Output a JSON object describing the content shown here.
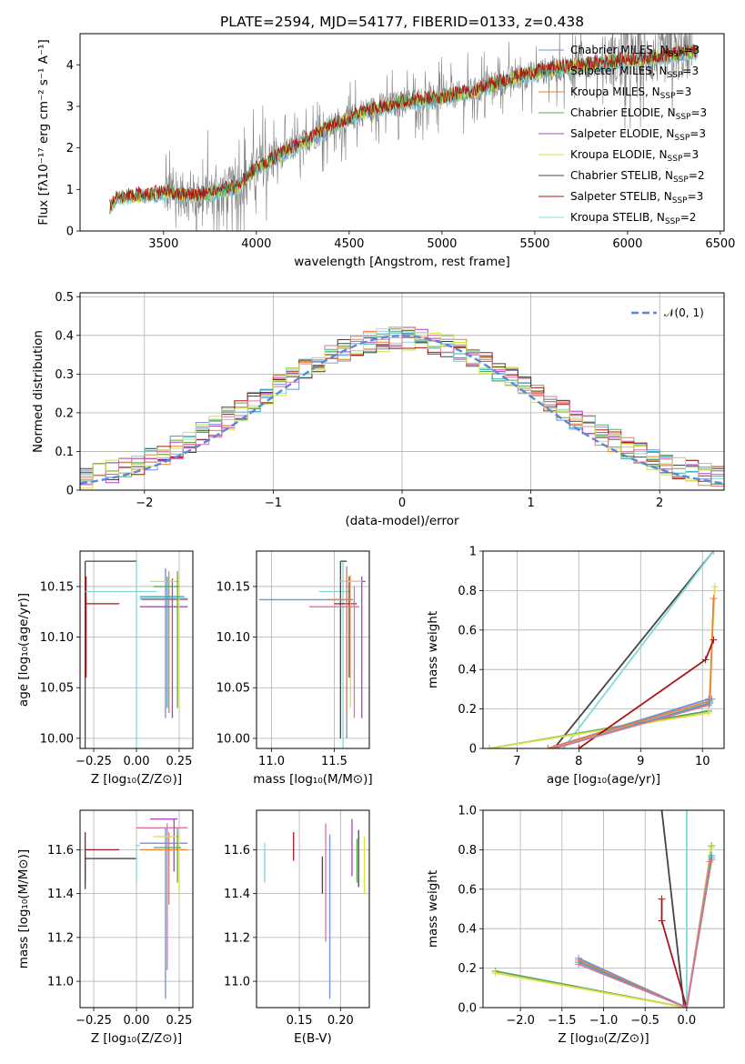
{
  "colors": {
    "Chabrier MILES": "#6f8fdc",
    "Salpeter MILES": "#2ab0b8",
    "Kroupa MILES": "#ee7f33",
    "Chabrier ELODIE": "#5aa85a",
    "Salpeter ELODIE": "#b040c8",
    "Kroupa ELODIE": "#dede40",
    "Chabrier STELIB": "#454545",
    "Salpeter STELIB": "#a81818",
    "Kroupa STELIB": "#80d8d8",
    "extra1": "#e070a0",
    "extra2": "#c8e070",
    "data": "#808080",
    "gauss": "#5a88d8",
    "grid": "#b0b0b0"
  },
  "chart_data": [
    {
      "id": "spectrum",
      "type": "line",
      "title": "PLATE=2594, MJD=54177, FIBERID=0133, z=0.438",
      "xlabel": "wavelength [Angstrom, rest frame]",
      "ylabel": "Flux [fλ10⁻¹⁷ erg cm⁻² s⁻¹ A⁻¹]",
      "xlim": [
        3050,
        6520
      ],
      "ylim": [
        0,
        4.75
      ],
      "xticks": [
        3500,
        4000,
        4500,
        5000,
        5500,
        6000,
        6500
      ],
      "yticks": [
        0,
        1,
        2,
        3,
        4
      ],
      "grid": false,
      "legend": "upper right",
      "legend_entries": [
        {
          "model": "Chabrier MILES",
          "nssp": 3
        },
        {
          "model": "Salpeter MILES",
          "nssp": 3
        },
        {
          "model": "Kroupa MILES",
          "nssp": 3
        },
        {
          "model": "Chabrier ELODIE",
          "nssp": 3
        },
        {
          "model": "Salpeter ELODIE",
          "nssp": 3
        },
        {
          "model": "Kroupa ELODIE",
          "nssp": 3
        },
        {
          "model": "Chabrier STELIB",
          "nssp": 2
        },
        {
          "model": "Salpeter STELIB",
          "nssp": 3
        },
        {
          "model": "Kroupa STELIB",
          "nssp": 2
        }
      ],
      "continuum_model": [
        [
          3210,
          0.55
        ],
        [
          3250,
          0.8
        ],
        [
          3500,
          0.9
        ],
        [
          3700,
          0.85
        ],
        [
          3900,
          1.05
        ],
        [
          4000,
          1.5
        ],
        [
          4200,
          2.0
        ],
        [
          4400,
          2.5
        ],
        [
          4600,
          2.9
        ],
        [
          4800,
          3.1
        ],
        [
          5000,
          3.2
        ],
        [
          5200,
          3.4
        ],
        [
          5400,
          3.7
        ],
        [
          5600,
          3.9
        ],
        [
          5800,
          4.0
        ],
        [
          6000,
          4.1
        ],
        [
          6200,
          4.2
        ],
        [
          6350,
          4.3
        ]
      ],
      "data_range": [
        3500,
        6350
      ]
    },
    {
      "id": "residuals",
      "type": "line",
      "xlabel": "(data-model)/error",
      "ylabel": "Normed distribution",
      "xlim": [
        -2.5,
        2.5
      ],
      "ylim": [
        0,
        0.51
      ],
      "xticks": [
        -2,
        -1,
        0,
        1,
        2
      ],
      "yticks": [
        0.0,
        0.1,
        0.2,
        0.3,
        0.4,
        0.5
      ],
      "grid": true,
      "legend": "upper right",
      "legend_label": "𝒩(0, 1)",
      "gaussian": {
        "mu": 0,
        "sigma": 1
      }
    },
    {
      "id": "age-vs-Z",
      "type": "scatter",
      "xlabel": "Z [log₁₀(Z/Z⊙)]",
      "ylabel": "age  [log₁₀(age/yr)]",
      "xlim": [
        -0.33,
        0.33
      ],
      "ylim": [
        9.99,
        10.185
      ],
      "xticks": [
        -0.25,
        0.0,
        0.25
      ],
      "yticks": [
        10.0,
        10.05,
        10.1,
        10.15
      ],
      "xticklabels": [
        "−0.25",
        "0.00",
        "0.25"
      ],
      "yticklabels": [
        "10.00",
        "10.05",
        "10.10",
        "10.15"
      ],
      "grid": true,
      "errorbars": [
        {
          "model": "Chabrier STELIB",
          "x": [
            -0.3,
            0.0
          ],
          "y": 10.175,
          "vx": -0.3,
          "vy": [
            9.99,
            10.175
          ]
        },
        {
          "model": "Salpeter STELIB",
          "x": [
            -0.3,
            -0.1
          ],
          "y": 10.133,
          "vx": -0.295,
          "vy": [
            10.06,
            10.16
          ]
        },
        {
          "model": "Kroupa STELIB",
          "x": [
            -0.3,
            0.12
          ],
          "y": 10.145,
          "vx": 0.0,
          "vy": [
            9.99,
            10.175
          ]
        },
        {
          "model": "Chabrier MILES",
          "x": [
            0.02,
            0.3
          ],
          "y": 10.138,
          "vx": 0.17,
          "vy": [
            10.02,
            10.168
          ]
        },
        {
          "model": "Kroupa MILES",
          "x": [
            0.03,
            0.3
          ],
          "y": 10.137,
          "vx": 0.19,
          "vy": [
            10.025,
            10.165
          ]
        },
        {
          "model": "Salpeter ELODIE",
          "x": [
            0.02,
            0.3
          ],
          "y": 10.13,
          "vx": 0.21,
          "vy": [
            10.02,
            10.158
          ]
        },
        {
          "model": "Kroupa ELODIE",
          "x": [
            0.08,
            0.25
          ],
          "y": 10.155,
          "vx": 0.25,
          "vy": [
            10.03,
            10.162
          ]
        },
        {
          "model": "Chabrier ELODIE",
          "x": [
            0.1,
            0.25
          ],
          "y": 10.15,
          "vx": 0.24,
          "vy": [
            10.03,
            10.165
          ]
        },
        {
          "model": "Salpeter MILES",
          "x": [
            0.02,
            0.28
          ],
          "y": 10.14,
          "vx": 0.18,
          "vy": [
            10.03,
            10.16
          ]
        }
      ]
    },
    {
      "id": "age-vs-mass",
      "type": "scatter",
      "xlabel": "mass [log₁₀(M/M⊙)]",
      "ylabel": "",
      "xlim": [
        10.88,
        11.78
      ],
      "ylim": [
        9.99,
        10.185
      ],
      "xticks": [
        11.0,
        11.5
      ],
      "yticks": [
        10.0,
        10.05,
        10.1,
        10.15
      ],
      "xticklabels": [
        "11.0",
        "11.5"
      ],
      "yticklabels": [
        "10.00",
        "10.05",
        "10.10",
        "10.15"
      ],
      "grid": true,
      "errorbars": [
        {
          "model": "Chabrier MILES",
          "x": [
            10.9,
            11.65
          ],
          "y": 10.137,
          "vx": 11.6,
          "vy": [
            10.0,
            10.17
          ]
        },
        {
          "model": "Kroupa STELIB",
          "x": [
            11.38,
            11.62
          ],
          "y": 10.145,
          "vx": 11.57,
          "vy": [
            9.99,
            10.175
          ]
        },
        {
          "model": "Chabrier STELIB",
          "x": [
            11.55,
            11.6
          ],
          "y": 10.175,
          "vx": 11.55,
          "vy": [
            10.0,
            10.175
          ]
        },
        {
          "model": "Salpeter STELIB",
          "x": [
            11.5,
            11.68
          ],
          "y": 10.133,
          "vx": 11.62,
          "vy": [
            10.06,
            10.16
          ]
        },
        {
          "model": "Salpeter ELODIE",
          "x": [
            11.55,
            11.75
          ],
          "y": 10.155,
          "vx": 11.72,
          "vy": [
            10.02,
            10.16
          ]
        },
        {
          "model": "Kroupa ELODIE",
          "x": [
            11.55,
            11.72
          ],
          "y": 10.155,
          "vx": 11.63,
          "vy": [
            10.03,
            10.162
          ]
        },
        {
          "model": "Kroupa MILES",
          "x": [
            11.45,
            11.65
          ],
          "y": 10.137,
          "vx": 11.6,
          "vy": [
            10.025,
            10.165
          ]
        },
        {
          "model": "extra1",
          "x": [
            11.3,
            11.7
          ],
          "y": 10.13,
          "vx": 11.66,
          "vy": [
            10.02,
            10.15
          ]
        }
      ]
    },
    {
      "id": "weight-vs-age",
      "type": "line",
      "xlabel": "age  [log₁₀(age/yr)]",
      "ylabel": "mass weight",
      "xlim": [
        6.45,
        10.35
      ],
      "ylim": [
        0,
        1.0
      ],
      "xticks": [
        7,
        8,
        9,
        10
      ],
      "yticks": [
        0.0,
        0.2,
        0.4,
        0.6,
        0.8,
        1.0
      ],
      "grid": true,
      "series": [
        {
          "model": "Chabrier STELIB",
          "points": [
            [
              7.6,
              0.0
            ],
            [
              10.18,
              1.0
            ]
          ]
        },
        {
          "model": "Kroupa STELIB",
          "points": [
            [
              7.75,
              0.0
            ],
            [
              10.18,
              1.0
            ]
          ]
        },
        {
          "model": "Chabrier ELODIE",
          "points": [
            [
              6.55,
              0.0
            ],
            [
              10.1,
              0.19
            ],
            [
              10.1,
              0.19
            ]
          ]
        },
        {
          "model": "Kroupa ELODIE",
          "points": [
            [
              6.55,
              0.0
            ],
            [
              10.1,
              0.18
            ],
            [
              10.2,
              0.82
            ]
          ]
        },
        {
          "model": "Chabrier MILES",
          "points": [
            [
              7.5,
              0.0
            ],
            [
              10.1,
              0.25
            ],
            [
              10.15,
              0.25
            ]
          ]
        },
        {
          "model": "Kroupa MILES",
          "points": [
            [
              7.5,
              0.0
            ],
            [
              10.12,
              0.24
            ],
            [
              10.18,
              0.76
            ]
          ]
        },
        {
          "model": "Salpeter STELIB",
          "points": [
            [
              8.0,
              0.0
            ],
            [
              10.05,
              0.45
            ],
            [
              10.18,
              0.55
            ]
          ]
        },
        {
          "model": "Salpeter MILES",
          "points": [
            [
              7.6,
              0.0
            ],
            [
              10.12,
              0.23
            ]
          ]
        },
        {
          "model": "extra1",
          "points": [
            [
              7.6,
              0.0
            ],
            [
              10.1,
              0.22
            ]
          ]
        }
      ]
    },
    {
      "id": "mass-vs-Z",
      "type": "scatter",
      "xlabel": "Z [log₁₀(Z/Z⊙)]",
      "ylabel": "mass [log₁₀(M/M⊙)]",
      "xlim": [
        -0.33,
        0.33
      ],
      "ylim": [
        10.88,
        11.78
      ],
      "xticks": [
        -0.25,
        0.0,
        0.25
      ],
      "yticks": [
        11.0,
        11.2,
        11.4,
        11.6
      ],
      "xticklabels": [
        "−0.25",
        "0.00",
        "0.25"
      ],
      "yticklabels": [
        "11.0",
        "11.2",
        "11.4",
        "11.6"
      ],
      "grid": true,
      "errorbars": [
        {
          "model": "Salpeter STELIB",
          "x": [
            -0.3,
            -0.1
          ],
          "y": 11.6,
          "vx": -0.3,
          "vy": [
            11.45,
            11.68
          ]
        },
        {
          "model": "Chabrier STELIB",
          "x": [
            -0.3,
            0.0
          ],
          "y": 11.56,
          "vx": -0.3,
          "vy": [
            11.42,
            11.6
          ]
        },
        {
          "model": "Kroupa STELIB",
          "x": [
            0.0,
            0.02
          ],
          "y": 11.62,
          "vx": 0.0,
          "vy": [
            11.45,
            11.62
          ]
        },
        {
          "model": "extra1",
          "x": [
            0.0,
            0.3
          ],
          "y": 11.7,
          "vx": 0.18,
          "vy": [
            11.05,
            11.72
          ]
        },
        {
          "model": "Salpeter ELODIE",
          "x": [
            0.08,
            0.24
          ],
          "y": 11.74,
          "vx": 0.22,
          "vy": [
            11.5,
            11.74
          ]
        },
        {
          "model": "Chabrier MILES",
          "x": [
            0.02,
            0.3
          ],
          "y": 11.63,
          "vx": 0.17,
          "vy": [
            10.92,
            11.7
          ]
        },
        {
          "model": "Kroupa MILES",
          "x": [
            0.02,
            0.3
          ],
          "y": 11.6,
          "vx": 0.19,
          "vy": [
            11.35,
            11.68
          ]
        },
        {
          "model": "Kroupa ELODIE",
          "x": [
            0.1,
            0.25
          ],
          "y": 11.66,
          "vx": 0.25,
          "vy": [
            11.4,
            11.66
          ]
        },
        {
          "model": "Chabrier ELODIE",
          "x": [
            0.1,
            0.26
          ],
          "y": 11.61,
          "vx": 0.24,
          "vy": [
            11.45,
            11.7
          ]
        }
      ]
    },
    {
      "id": "mass-vs-EBV",
      "type": "scatter",
      "xlabel": "E(B-V)",
      "ylabel": "",
      "xlim": [
        0.098,
        0.235
      ],
      "ylim": [
        10.88,
        11.78
      ],
      "xticks": [
        0.15,
        0.2
      ],
      "yticks": [
        11.0,
        11.2,
        11.4,
        11.6
      ],
      "xticklabels": [
        "0.15",
        "0.20"
      ],
      "yticklabels": [
        "11.0",
        "11.2",
        "11.4",
        "11.6"
      ],
      "grid": true,
      "errorbars": [
        {
          "model": "Kroupa STELIB",
          "vx": 0.108,
          "vy": [
            11.45,
            11.63
          ]
        },
        {
          "model": "Salpeter STELIB",
          "vx": 0.143,
          "vy": [
            11.55,
            11.68
          ]
        },
        {
          "model": "Chabrier STELIB",
          "vx": 0.178,
          "vy": [
            11.4,
            11.57
          ]
        },
        {
          "model": "extra1",
          "vx": 0.182,
          "vy": [
            11.18,
            11.72
          ]
        },
        {
          "model": "Chabrier MILES",
          "vx": 0.187,
          "vy": [
            10.92,
            11.67
          ]
        },
        {
          "model": "Salpeter ELODIE",
          "vx": 0.214,
          "vy": [
            11.48,
            11.74
          ]
        },
        {
          "model": "Chabrier ELODIE",
          "vx": 0.22,
          "vy": [
            11.45,
            11.65
          ]
        },
        {
          "model": "Chabrier STELIB",
          "vx": 0.222,
          "vy": [
            11.43,
            11.69
          ]
        },
        {
          "model": "Kroupa ELODIE",
          "vx": 0.229,
          "vy": [
            11.4,
            11.66
          ]
        }
      ]
    },
    {
      "id": "weight-vs-Z",
      "type": "line",
      "xlabel": "Z [log₁₀(Z/Z⊙)]",
      "ylabel": "mass weight",
      "xlim": [
        -2.45,
        0.45
      ],
      "ylim": [
        0,
        1.0
      ],
      "xticks": [
        -2.0,
        -1.5,
        -1.0,
        -0.5,
        0.0
      ],
      "yticks": [
        0.0,
        0.2,
        0.4,
        0.6,
        0.8,
        1.0
      ],
      "xticklabels": [
        "−2.0",
        "−1.5",
        "−1.0",
        "−0.5",
        "0.0"
      ],
      "yticklabels": [
        "0.0",
        "0.2",
        "0.4",
        "0.6",
        "0.8",
        "1.0"
      ],
      "grid": true,
      "series": [
        {
          "model": "Chabrier STELIB",
          "points": [
            [
              -0.03,
              0.0
            ],
            [
              -0.3,
              1.0
            ]
          ]
        },
        {
          "model": "Kroupa STELIB",
          "points": [
            [
              0.0,
              0.0
            ],
            [
              0.0,
              1.0
            ]
          ]
        },
        {
          "model": "Chabrier ELODIE",
          "points": [
            [
              -2.3,
              0.185
            ],
            [
              0.0,
              0.0
            ],
            [
              0.3,
              0.82
            ]
          ]
        },
        {
          "model": "Kroupa ELODIE",
          "points": [
            [
              -2.3,
              0.175
            ],
            [
              0.0,
              0.0
            ],
            [
              0.3,
              0.81
            ]
          ]
        },
        {
          "model": "Chabrier MILES",
          "points": [
            [
              -1.3,
              0.25
            ],
            [
              0.0,
              0.0
            ],
            [
              0.3,
              0.76
            ]
          ]
        },
        {
          "model": "Kroupa MILES",
          "points": [
            [
              -1.3,
              0.24
            ],
            [
              0.0,
              0.0
            ],
            [
              0.3,
              0.75
            ]
          ]
        },
        {
          "model": "Salpeter MILES",
          "points": [
            [
              -1.3,
              0.23
            ],
            [
              0.0,
              0.0
            ],
            [
              0.3,
              0.77
            ]
          ]
        },
        {
          "model": "Salpeter STELIB",
          "points": [
            [
              -0.3,
              0.55
            ],
            [
              -0.3,
              0.44
            ],
            [
              0.0,
              0.0
            ]
          ]
        },
        {
          "model": "extra1",
          "points": [
            [
              -1.3,
              0.22
            ],
            [
              0.0,
              0.0
            ],
            [
              0.28,
              0.74
            ]
          ]
        }
      ]
    }
  ]
}
